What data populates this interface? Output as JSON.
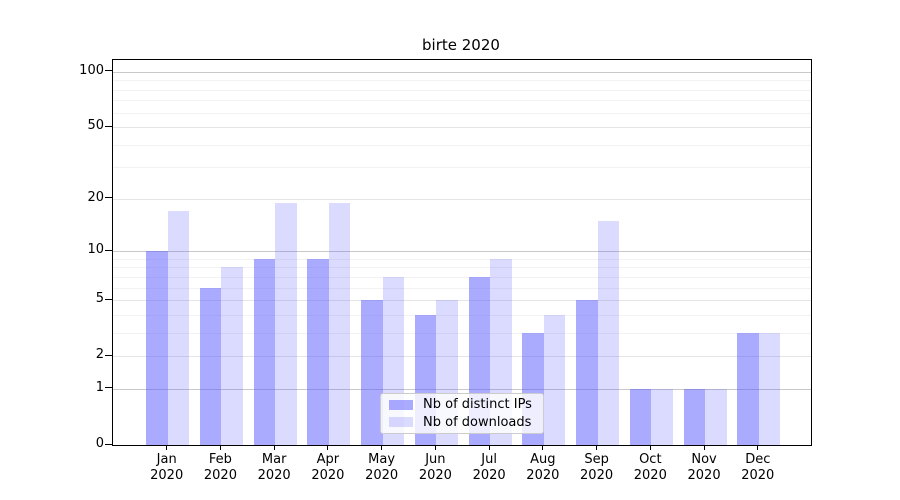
{
  "title": "birte 2020",
  "colors": {
    "bar_ips": "rgba(85,85,255,0.5)",
    "bar_downloads": "rgba(85,85,255,0.21)",
    "grid_decade": "#c9c9c9",
    "grid_labeled": "#e5e5e5",
    "grid_minor": "#f2f2f2",
    "axis": "#000000"
  },
  "chart_data": {
    "type": "bar",
    "title": "birte 2020",
    "categories": [
      "Jan",
      "Feb",
      "Mar",
      "Apr",
      "May",
      "Jun",
      "Jul",
      "Aug",
      "Sep",
      "Oct",
      "Nov",
      "Dec"
    ],
    "year_label": "2020",
    "series": [
      {
        "name": "Nb of distinct IPs",
        "values": [
          10,
          6,
          9,
          9,
          5,
          4,
          7,
          3,
          5,
          1,
          1,
          3
        ]
      },
      {
        "name": "Nb of downloads",
        "values": [
          17,
          8,
          19,
          19,
          7,
          5,
          9,
          4,
          15,
          1,
          1,
          3
        ]
      }
    ],
    "xlabel": "",
    "ylabel": "",
    "yscale": "log1p",
    "ylim": [
      0,
      116
    ],
    "yticks": [
      0,
      1,
      2,
      5,
      10,
      20,
      50,
      100
    ],
    "ytick_labels": [
      "0",
      "1",
      "2",
      "5",
      "10",
      "20",
      "50",
      "100"
    ],
    "grid_labeled_values": [
      2,
      5,
      20,
      50
    ],
    "grid_minor_values": [
      3,
      4,
      6,
      7,
      8,
      9,
      30,
      40,
      60,
      70,
      80,
      90
    ],
    "grid": true,
    "legend_position": "lower center"
  },
  "legend": {
    "items": [
      {
        "label": "Nb of distinct IPs"
      },
      {
        "label": "Nb of downloads"
      }
    ]
  }
}
